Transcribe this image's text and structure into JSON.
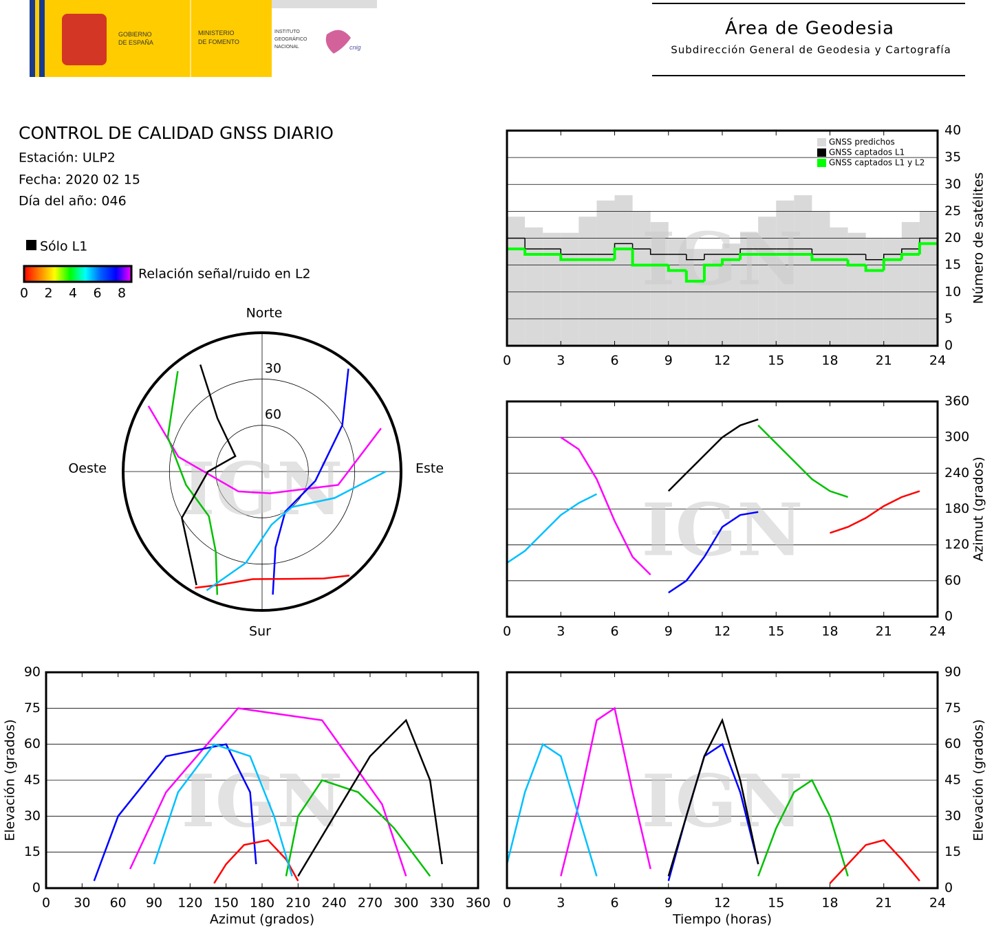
{
  "header": {
    "gobierno": [
      "GOBIERNO",
      "DE ESPAÑA"
    ],
    "ministerio": [
      "MINISTERIO",
      "DE FOMENTO"
    ],
    "instituto": [
      "INSTITUTO",
      "GEOGRÁFICO",
      "NACIONAL"
    ],
    "cnig": "cnig",
    "area": "Área de Geodesia",
    "subdireccion": "Subdirección General de Geodesia y Cartografía"
  },
  "info": {
    "title": "CONTROL DE CALIDAD GNSS DIARIO",
    "station": "Estación: ULP2",
    "date": "Fecha: 2020 02 15",
    "doy": "Día del año: 046"
  },
  "snr_legend": {
    "l1_only": "Sólo L1",
    "l1_color": "#000000",
    "label": "Relación señal/ruido en L2",
    "ticks": [
      0,
      2,
      4,
      6,
      8
    ],
    "colors": [
      "#ff0000",
      "#ff8000",
      "#ffff00",
      "#00ff00",
      "#00ffff",
      "#0060ff",
      "#0000ff",
      "#ff00ff"
    ]
  },
  "watermark": "IGN",
  "chart_data": [
    {
      "type": "polar",
      "labels": {
        "north": "Norte",
        "south": "Sur",
        "east": "Este",
        "west": "Oeste"
      },
      "rlim": [
        0,
        90
      ],
      "rticks": [
        30,
        60
      ],
      "series": [
        {
          "color": "#ff00ff",
          "azimuth": [
            300,
            280,
            230,
            160,
            100,
            70
          ],
          "elevation": [
            5,
            35,
            70,
            75,
            40,
            8
          ]
        },
        {
          "color": "#0000ff",
          "azimuth": [
            40,
            60,
            100,
            150,
            170,
            175
          ],
          "elevation": [
            3,
            30,
            55,
            60,
            40,
            10
          ]
        },
        {
          "color": "#00c000",
          "azimuth": [
            320,
            290,
            260,
            230,
            210,
            200
          ],
          "elevation": [
            5,
            25,
            40,
            45,
            30,
            5
          ]
        },
        {
          "color": "#ff0000",
          "azimuth": [
            140,
            150,
            165,
            185,
            200,
            210
          ],
          "elevation": [
            2,
            10,
            18,
            20,
            12,
            3
          ]
        },
        {
          "color": "#000000",
          "azimuth": [
            210,
            240,
            270,
            300,
            320,
            330
          ],
          "elevation": [
            5,
            30,
            55,
            70,
            45,
            10
          ]
        },
        {
          "color": "#00c0ff",
          "azimuth": [
            90,
            110,
            140,
            170,
            190,
            205
          ],
          "elevation": [
            10,
            40,
            60,
            55,
            30,
            5
          ]
        }
      ]
    },
    {
      "type": "step",
      "y_label": "Número de satélites",
      "y_axis_side": "right",
      "legend": "upper right",
      "grid": true,
      "xlim": [
        0,
        24
      ],
      "xticks": [
        0,
        3,
        6,
        9,
        12,
        15,
        18,
        21,
        24
      ],
      "ylim": [
        0,
        40
      ],
      "yticks": [
        0,
        5,
        10,
        15,
        20,
        25,
        30,
        35,
        40
      ],
      "x": [
        0,
        1,
        2,
        3,
        4,
        5,
        6,
        7,
        8,
        9,
        10,
        11,
        12,
        13,
        14,
        15,
        16,
        17,
        18,
        19,
        20,
        21,
        22,
        23
      ],
      "series": [
        {
          "name": "GNSS predichos",
          "color": "#d9d9d9",
          "values": [
            24,
            22,
            21,
            21,
            24,
            27,
            28,
            25,
            23,
            20,
            18,
            18,
            19,
            21,
            24,
            27,
            28,
            25,
            22,
            21,
            20,
            20,
            23,
            25
          ]
        },
        {
          "name": "GNSS captados L1",
          "color": "#000000",
          "values": [
            20,
            18,
            18,
            17,
            17,
            17,
            19,
            18,
            17,
            17,
            16,
            17,
            17,
            18,
            18,
            18,
            18,
            17,
            17,
            17,
            16,
            17,
            18,
            20
          ]
        },
        {
          "name": "GNSS captados L1 y L2",
          "color": "#00ff00",
          "values": [
            18,
            17,
            17,
            16,
            16,
            16,
            18,
            15,
            15,
            14,
            12,
            15,
            16,
            17,
            17,
            17,
            17,
            16,
            16,
            15,
            14,
            16,
            17,
            19
          ]
        }
      ]
    },
    {
      "type": "line",
      "y_label": "Azimut (grados)",
      "y_axis_side": "right",
      "grid": true,
      "xlim": [
        0,
        24
      ],
      "xticks": [
        0,
        3,
        6,
        9,
        12,
        15,
        18,
        21,
        24
      ],
      "ylim": [
        0,
        360
      ],
      "yticks": [
        0,
        60,
        120,
        180,
        240,
        300,
        360
      ],
      "series": [
        {
          "color": "#ff00ff",
          "x": [
            3,
            4,
            5,
            6,
            7,
            8
          ],
          "values": [
            300,
            280,
            230,
            160,
            100,
            70
          ]
        },
        {
          "color": "#0000ff",
          "x": [
            9,
            10,
            11,
            12,
            13,
            14
          ],
          "values": [
            40,
            60,
            100,
            150,
            170,
            175
          ]
        },
        {
          "color": "#00c000",
          "x": [
            14,
            15,
            16,
            17,
            18,
            19
          ],
          "values": [
            320,
            290,
            260,
            230,
            210,
            200
          ]
        },
        {
          "color": "#ff0000",
          "x": [
            18,
            19,
            20,
            21,
            22,
            23
          ],
          "values": [
            140,
            150,
            165,
            185,
            200,
            210
          ]
        },
        {
          "color": "#000000",
          "x": [
            9,
            10,
            11,
            12,
            13,
            14
          ],
          "values": [
            210,
            240,
            270,
            300,
            320,
            330
          ]
        },
        {
          "color": "#00c0ff",
          "x": [
            0,
            1,
            2,
            3,
            4,
            5
          ],
          "values": [
            90,
            110,
            140,
            170,
            190,
            205
          ]
        }
      ]
    },
    {
      "type": "line",
      "x_label": "Azimut (grados)",
      "y_label": "Elevación (grados)",
      "y_axis_side": "left",
      "grid": true,
      "xlim": [
        0,
        360
      ],
      "xticks": [
        0,
        30,
        60,
        90,
        120,
        150,
        180,
        210,
        240,
        270,
        300,
        330,
        360
      ],
      "ylim": [
        0,
        90
      ],
      "yticks": [
        0,
        15,
        30,
        45,
        60,
        75,
        90
      ],
      "series": [
        {
          "color": "#ff00ff",
          "x": [
            300,
            280,
            230,
            160,
            100,
            70
          ],
          "values": [
            5,
            35,
            70,
            75,
            40,
            8
          ]
        },
        {
          "color": "#0000ff",
          "x": [
            40,
            60,
            100,
            150,
            170,
            175
          ],
          "values": [
            3,
            30,
            55,
            60,
            40,
            10
          ]
        },
        {
          "color": "#00c000",
          "x": [
            320,
            290,
            260,
            230,
            210,
            200
          ],
          "values": [
            5,
            25,
            40,
            45,
            30,
            5
          ]
        },
        {
          "color": "#ff0000",
          "x": [
            140,
            150,
            165,
            185,
            200,
            210
          ],
          "values": [
            2,
            10,
            18,
            20,
            12,
            3
          ]
        },
        {
          "color": "#000000",
          "x": [
            210,
            240,
            270,
            300,
            320,
            330
          ],
          "values": [
            5,
            30,
            55,
            70,
            45,
            10
          ]
        },
        {
          "color": "#00c0ff",
          "x": [
            90,
            110,
            140,
            170,
            190,
            205
          ],
          "values": [
            10,
            40,
            60,
            55,
            30,
            5
          ]
        }
      ]
    },
    {
      "type": "line",
      "x_label": "Tiempo (horas)",
      "y_label": "Elevación (grados)",
      "y_axis_side": "right",
      "grid": true,
      "xlim": [
        0,
        24
      ],
      "xticks": [
        0,
        3,
        6,
        9,
        12,
        15,
        18,
        21,
        24
      ],
      "ylim": [
        0,
        90
      ],
      "yticks": [
        0,
        15,
        30,
        45,
        60,
        75,
        90
      ],
      "series": [
        {
          "color": "#ff00ff",
          "x": [
            3,
            4,
            5,
            6,
            7,
            8
          ],
          "values": [
            5,
            35,
            70,
            75,
            40,
            8
          ]
        },
        {
          "color": "#0000ff",
          "x": [
            9,
            10,
            11,
            12,
            13,
            14
          ],
          "values": [
            3,
            30,
            55,
            60,
            40,
            10
          ]
        },
        {
          "color": "#00c000",
          "x": [
            14,
            15,
            16,
            17,
            18,
            19
          ],
          "values": [
            5,
            25,
            40,
            45,
            30,
            5
          ]
        },
        {
          "color": "#ff0000",
          "x": [
            18,
            19,
            20,
            21,
            22,
            23
          ],
          "values": [
            2,
            10,
            18,
            20,
            12,
            3
          ]
        },
        {
          "color": "#000000",
          "x": [
            9,
            10,
            11,
            12,
            13,
            14
          ],
          "values": [
            5,
            30,
            55,
            70,
            45,
            10
          ]
        },
        {
          "color": "#00c0ff",
          "x": [
            0,
            1,
            2,
            3,
            4,
            5
          ],
          "values": [
            10,
            40,
            60,
            55,
            30,
            5
          ]
        }
      ]
    }
  ]
}
